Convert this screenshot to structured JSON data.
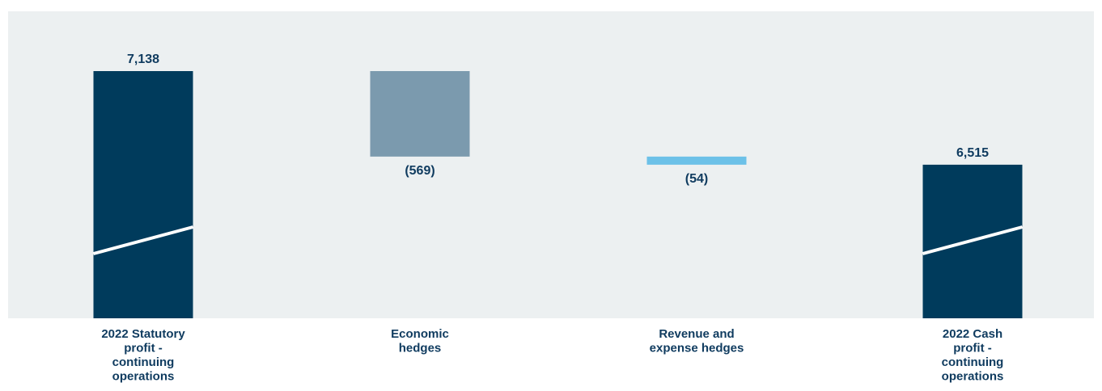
{
  "chart_data": {
    "type": "waterfall",
    "categories": [
      [
        "2022 Statutory",
        "profit -",
        "continuing",
        "operations"
      ],
      [
        "Economic",
        "hedges"
      ],
      [
        "Revenue and",
        "expense hedges"
      ],
      [
        "2022 Cash",
        "profit -",
        "continuing",
        "operations"
      ]
    ],
    "steps": [
      {
        "kind": "total",
        "value": 7138,
        "label": "7,138"
      },
      {
        "kind": "delta",
        "value": -569,
        "label": "(569)"
      },
      {
        "kind": "delta",
        "value": -54,
        "label": "(54)"
      },
      {
        "kind": "total",
        "value": 6515,
        "label": "6,515"
      }
    ],
    "axis_break": true,
    "grid": false,
    "colors": {
      "background": "#ecf0f1",
      "total": "#003b5c",
      "decrease_large": "#7b9aae",
      "decrease_small": "#6cc1e8",
      "text": "#0f3b5f",
      "break_line": "#ffffff"
    }
  }
}
